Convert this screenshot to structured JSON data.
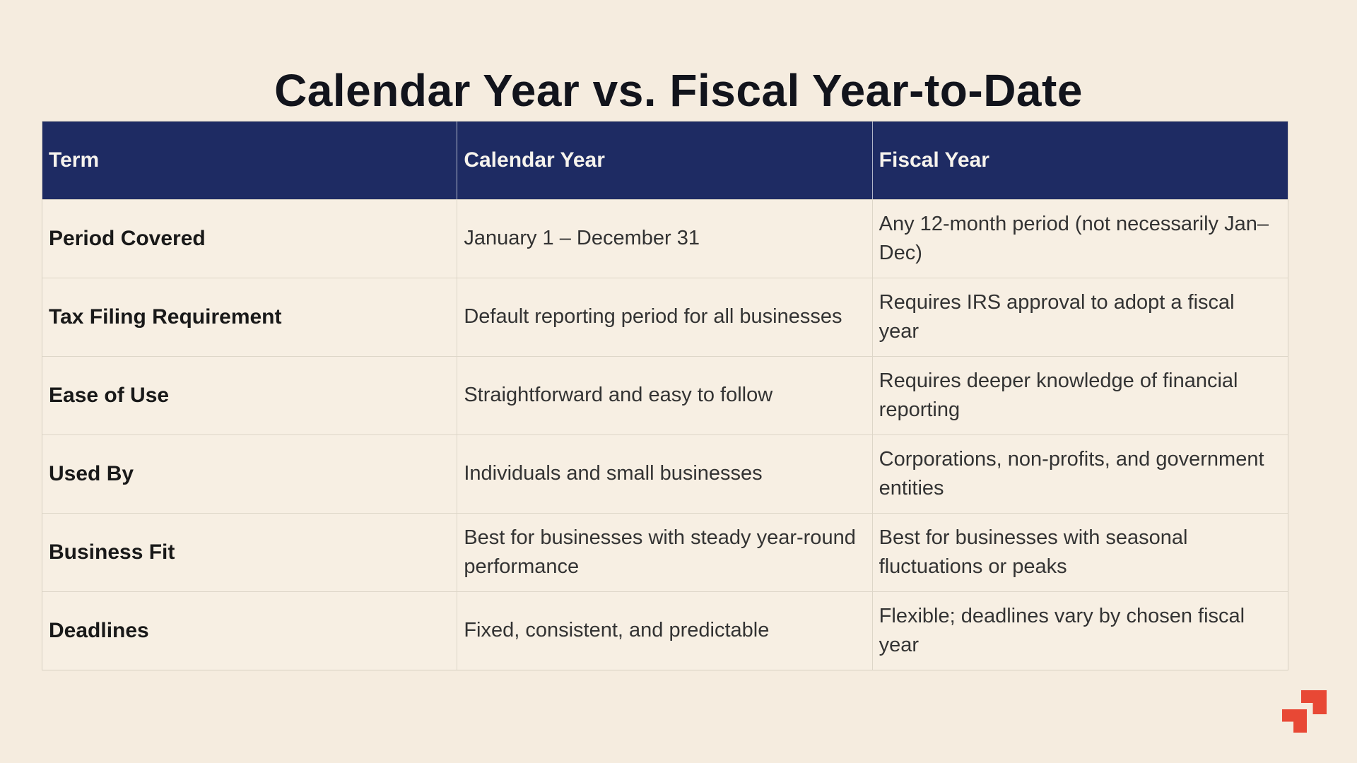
{
  "page": {
    "title": "Calendar Year vs. Fiscal Year-to-Date"
  },
  "colors": {
    "page_background": "#f5ecdf",
    "cell_background": "#f7efe3",
    "header_background": "#1e2b63",
    "header_text": "#f6f3ed",
    "title_text": "#12141c",
    "body_text": "#333333",
    "term_text": "#191919",
    "table_border": "#ddd6c8",
    "logo_red": "#e84835"
  },
  "table": {
    "columns": [
      "Term",
      "Calendar Year",
      "Fiscal Year"
    ],
    "rows": [
      {
        "term": "Period Covered",
        "calendar_year": "January 1 – December 31",
        "fiscal_year": "Any 12-month period (not necessarily Jan–Dec)"
      },
      {
        "term": "Tax Filing Requirement",
        "calendar_year": "Default reporting period for all businesses",
        "fiscal_year": "Requires IRS approval to adopt a fiscal year"
      },
      {
        "term": "Ease of Use",
        "calendar_year": "Straightforward and easy to follow",
        "fiscal_year": "Requires deeper knowledge of financial reporting"
      },
      {
        "term": "Used By",
        "calendar_year": "Individuals and small businesses",
        "fiscal_year": "Corporations, non-profits, and government entities"
      },
      {
        "term": "Business Fit",
        "calendar_year": "Best for businesses with steady year-round performance",
        "fiscal_year": "Best for businesses with seasonal fluctuations or peaks"
      },
      {
        "term": "Deadlines",
        "calendar_year": "Fixed, consistent, and predictable",
        "fiscal_year": "Flexible; deadlines vary by chosen fiscal year"
      }
    ]
  },
  "logo": {
    "description": "two interlocking red arrow squares"
  }
}
